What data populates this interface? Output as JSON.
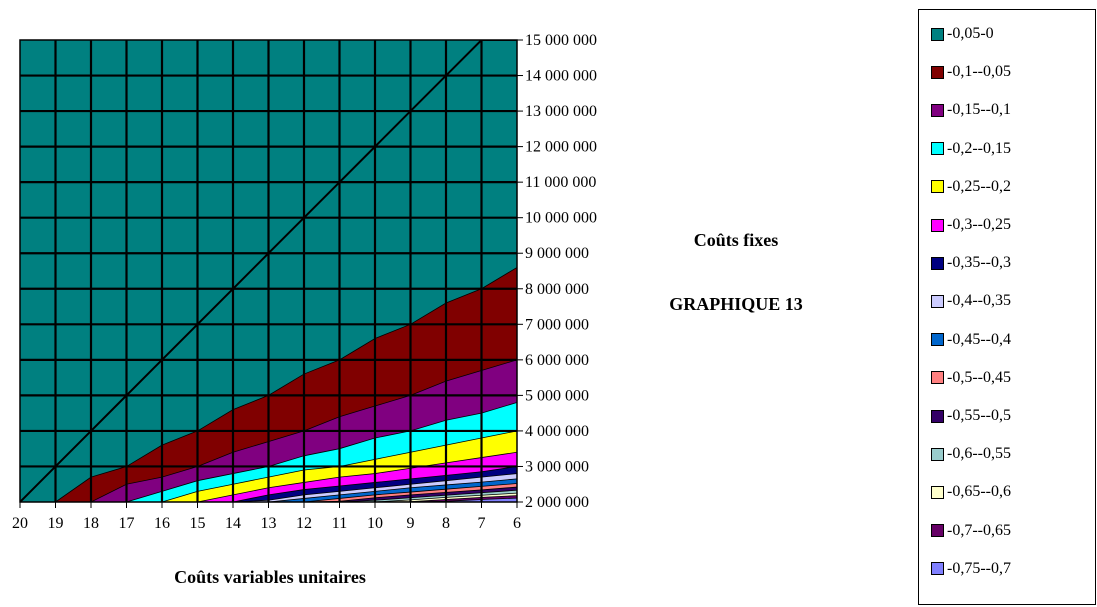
{
  "chart_data": {
    "type": "area",
    "subtype": "contour",
    "title": "GRAPHIQUE 13",
    "xlabel": "Coûts variables unitaires",
    "ylabel": "Coûts fixes",
    "x_ticks": [
      "20",
      "19",
      "18",
      "17",
      "16",
      "15",
      "14",
      "13",
      "12",
      "11",
      "10",
      "9",
      "8",
      "7",
      "6"
    ],
    "x_values": [
      20,
      19,
      18,
      17,
      16,
      15,
      14,
      13,
      12,
      11,
      10,
      9,
      8,
      7,
      6
    ],
    "y_ticks": [
      "2 000 000",
      "3 000 000",
      "4 000 000",
      "5 000 000",
      "6 000 000",
      "7 000 000",
      "8 000 000",
      "9 000 000",
      "10 000 000",
      "11 000 000",
      "12 000 000",
      "13 000 000",
      "14 000 000",
      "15 000 000"
    ],
    "ylim": [
      2000000,
      15000000
    ],
    "xlim": [
      20,
      6
    ],
    "x_reversed": true,
    "grid": true,
    "legend_position": "right",
    "boundary_lines": [
      {
        "upper_band": "-0,05-0",
        "y": [
          2000000,
          3000000,
          4000000,
          5000000,
          6000000,
          7000000,
          8000000,
          9000000,
          10000000,
          11000000,
          12000000,
          13000000,
          14000000,
          15000000,
          15000000
        ]
      },
      {
        "upper_band": "-0,1--0,05",
        "y": [
          2000000,
          2000000,
          2700000,
          3000000,
          3600000,
          4000000,
          4600000,
          5000000,
          5600000,
          6000000,
          6600000,
          7000000,
          7600000,
          8000000,
          8600000
        ]
      },
      {
        "upper_band": "-0,15--0,1",
        "y": [
          2000000,
          2000000,
          2000000,
          2500000,
          2700000,
          3000000,
          3400000,
          3700000,
          4000000,
          4400000,
          4700000,
          5000000,
          5400000,
          5700000,
          6000000
        ]
      },
      {
        "upper_band": "-0,2--0,15",
        "y": [
          2000000,
          2000000,
          2000000,
          2000000,
          2300000,
          2600000,
          2800000,
          3000000,
          3300000,
          3500000,
          3800000,
          4000000,
          4300000,
          4500000,
          4800000
        ]
      },
      {
        "upper_band": "-0,25--0,2",
        "y": [
          2000000,
          2000000,
          2000000,
          2000000,
          2000000,
          2300000,
          2500000,
          2700000,
          2900000,
          3000000,
          3200000,
          3400000,
          3600000,
          3800000,
          4000000
        ]
      },
      {
        "upper_band": "-0,3--0,25",
        "y": [
          2000000,
          2000000,
          2000000,
          2000000,
          2000000,
          2000000,
          2200000,
          2400000,
          2550000,
          2700000,
          2800000,
          2950000,
          3100000,
          3250000,
          3400000
        ]
      },
      {
        "upper_band": "-0,35--0,3",
        "y": [
          2000000,
          2000000,
          2000000,
          2000000,
          2000000,
          2000000,
          2000000,
          2200000,
          2350000,
          2450000,
          2550000,
          2650000,
          2750000,
          2850000,
          3000000
        ]
      },
      {
        "upper_band": "-0,4--0,35",
        "y": [
          2000000,
          2000000,
          2000000,
          2000000,
          2000000,
          2000000,
          2000000,
          2050000,
          2200000,
          2300000,
          2400000,
          2500000,
          2600000,
          2700000,
          2800000
        ]
      },
      {
        "upper_band": "-0,45--0,4",
        "y": [
          2000000,
          2000000,
          2000000,
          2000000,
          2000000,
          2000000,
          2000000,
          2000000,
          2100000,
          2200000,
          2300000,
          2400000,
          2480000,
          2560000,
          2650000
        ]
      },
      {
        "upper_band": "-0,5--0,45",
        "y": [
          2000000,
          2000000,
          2000000,
          2000000,
          2000000,
          2000000,
          2000000,
          2000000,
          2000000,
          2100000,
          2200000,
          2280000,
          2360000,
          2440000,
          2520000
        ]
      },
      {
        "upper_band": "-0,55--0,5",
        "y": [
          2000000,
          2000000,
          2000000,
          2000000,
          2000000,
          2000000,
          2000000,
          2000000,
          2000000,
          2020000,
          2120000,
          2200000,
          2270000,
          2340000,
          2420000
        ]
      },
      {
        "upper_band": "-0,6--0,55",
        "y": [
          2000000,
          2000000,
          2000000,
          2000000,
          2000000,
          2000000,
          2000000,
          2000000,
          2000000,
          2000000,
          2050000,
          2120000,
          2190000,
          2260000,
          2330000
        ]
      },
      {
        "upper_band": "-0,65--0,6",
        "y": [
          2000000,
          2000000,
          2000000,
          2000000,
          2000000,
          2000000,
          2000000,
          2000000,
          2000000,
          2000000,
          2000000,
          2060000,
          2130000,
          2190000,
          2250000
        ]
      },
      {
        "upper_band": "-0,7--0,65",
        "y": [
          2000000,
          2000000,
          2000000,
          2000000,
          2000000,
          2000000,
          2000000,
          2000000,
          2000000,
          2000000,
          2000000,
          2010000,
          2070000,
          2130000,
          2180000
        ]
      },
      {
        "upper_band": "-0,75--0,7",
        "y": [
          2000000,
          2000000,
          2000000,
          2000000,
          2000000,
          2000000,
          2000000,
          2000000,
          2000000,
          2000000,
          2000000,
          2000000,
          2020000,
          2070000,
          2110000
        ]
      }
    ],
    "series": [
      {
        "name": "-0,05-0",
        "color": "#008080"
      },
      {
        "name": "-0,1--0,05",
        "color": "#800000"
      },
      {
        "name": "-0,15--0,1",
        "color": "#800080"
      },
      {
        "name": "-0,2--0,15",
        "color": "#00FFFF"
      },
      {
        "name": "-0,25--0,2",
        "color": "#FFFF00"
      },
      {
        "name": "-0,3--0,25",
        "color": "#FF00FF"
      },
      {
        "name": "-0,35--0,3",
        "color": "#000080"
      },
      {
        "name": "-0,4--0,35",
        "color": "#CCCCFF"
      },
      {
        "name": "-0,45--0,4",
        "color": "#0066CC"
      },
      {
        "name": "-0,5--0,45",
        "color": "#FF8080"
      },
      {
        "name": "-0,55--0,5",
        "color": "#330066"
      },
      {
        "name": "-0,6--0,55",
        "color": "#99CCCC"
      },
      {
        "name": "-0,65--0,6",
        "color": "#FFFFCC"
      },
      {
        "name": "-0,7--0,65",
        "color": "#660066"
      },
      {
        "name": "-0,75--0,7",
        "color": "#8080FF"
      }
    ]
  }
}
